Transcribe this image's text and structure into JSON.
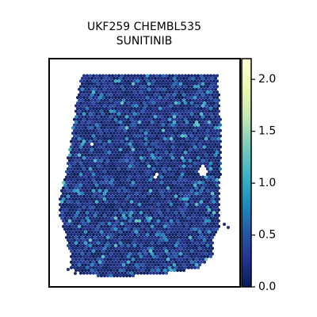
{
  "chart_data": {
    "type": "scatter",
    "subtype": "spatial-hexbin",
    "title_lines": [
      "UKF259 CHEMBL535",
      "SUNITINIB"
    ],
    "xlabel": "",
    "ylabel": "",
    "axes_ticks_shown": false,
    "colorbar": {
      "colormap": "YlGnBu",
      "range": [
        0.0,
        2.2
      ],
      "ticks": [
        0.0,
        0.5,
        1.0,
        1.5,
        2.0
      ],
      "tick_labels": [
        "0.0",
        "0.5",
        "1.0",
        "1.5",
        "2.0"
      ],
      "low_color": "#081d58",
      "high_color": "#ffffd9"
    },
    "value_distribution": {
      "dominant_range": [
        0.0,
        0.3
      ],
      "scattered_range": [
        0.3,
        1.2
      ],
      "max_observed": 1.3
    },
    "grid": false,
    "legend": "colorbar-right"
  }
}
